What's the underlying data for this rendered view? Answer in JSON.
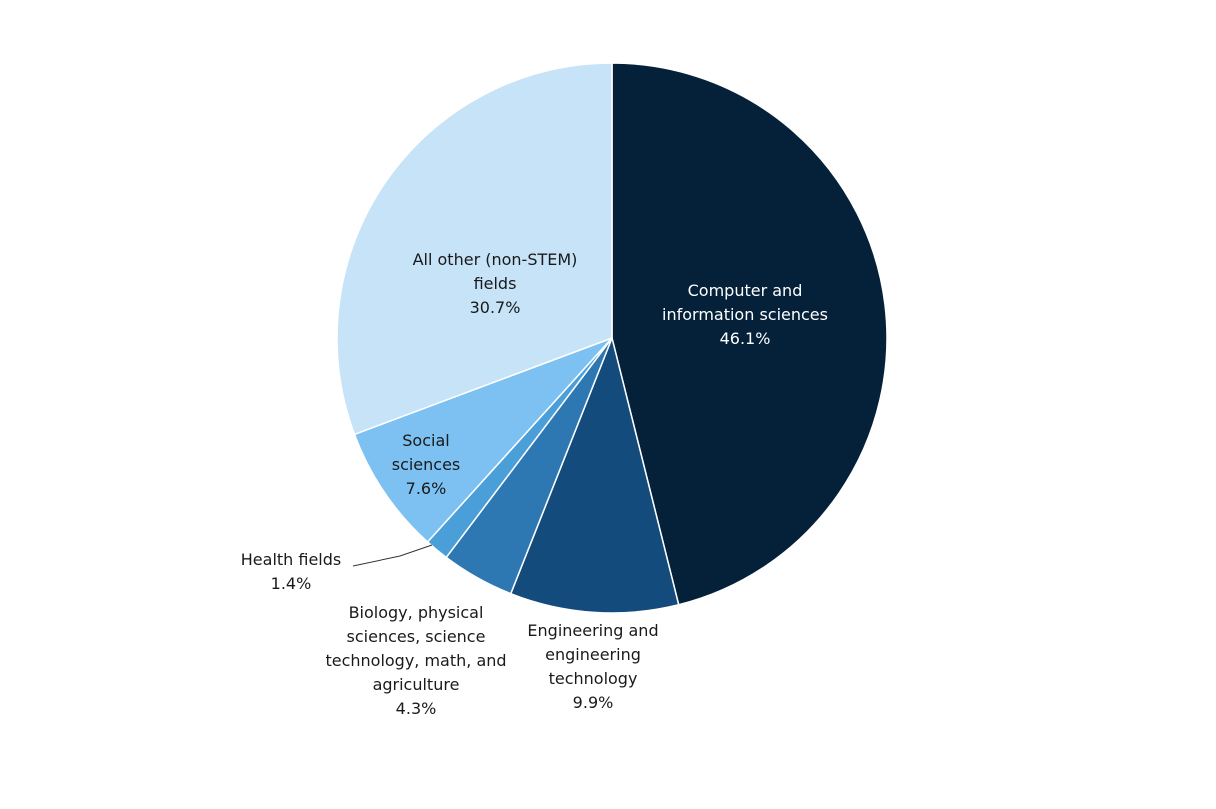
{
  "chart_data": {
    "type": "pie",
    "start": "top",
    "direction": "clockwise",
    "slices": [
      {
        "label": "Computer and\ninformation sciences",
        "value": 46.1,
        "value_label": "46.1%",
        "color": "#05213a"
      },
      {
        "label": "Engineering and\nengineering\ntechnology",
        "value": 9.9,
        "value_label": "9.9%",
        "color": "#134b7c"
      },
      {
        "label": "Biology, physical\nsciences, science\ntechnology, math, and\nagriculture",
        "value": 4.3,
        "value_label": "4.3%",
        "color": "#2d78b3"
      },
      {
        "label": "Health fields",
        "value": 1.4,
        "value_label": "1.4%",
        "color": "#4b9fd8"
      },
      {
        "label": "Social\nsciences",
        "value": 7.6,
        "value_label": "7.6%",
        "color": "#7cc1f2"
      },
      {
        "label": "All other (non-STEM)\nfields",
        "value": 30.7,
        "value_label": "30.7%",
        "color": "#c6e3f8"
      }
    ]
  }
}
